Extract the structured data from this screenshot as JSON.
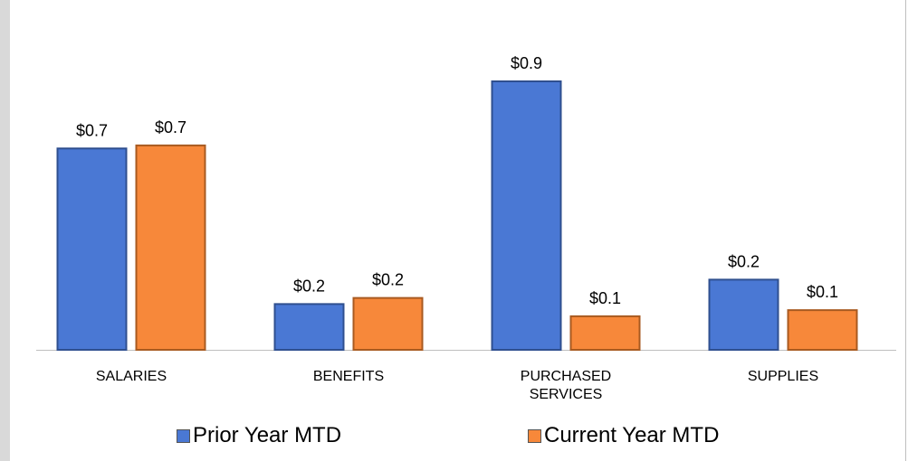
{
  "chart_data": {
    "type": "bar",
    "categories": [
      "SALARIES",
      "BENEFITS",
      "PURCHASED SERVICES",
      "SUPPLIES"
    ],
    "series": [
      {
        "name": "Prior Year MTD",
        "color": "#4a78d4",
        "values": [
          0.66,
          0.15,
          0.88,
          0.23
        ],
        "value_labels": [
          "$0.7",
          "$0.2",
          "$0.9",
          "$0.2"
        ]
      },
      {
        "name": "Current Year MTD",
        "color": "#f7883a",
        "values": [
          0.67,
          0.17,
          0.11,
          0.13
        ],
        "value_labels": [
          "$0.7",
          "$0.2",
          "$0.1",
          "$0.1"
        ]
      }
    ],
    "legend": "bottom"
  }
}
